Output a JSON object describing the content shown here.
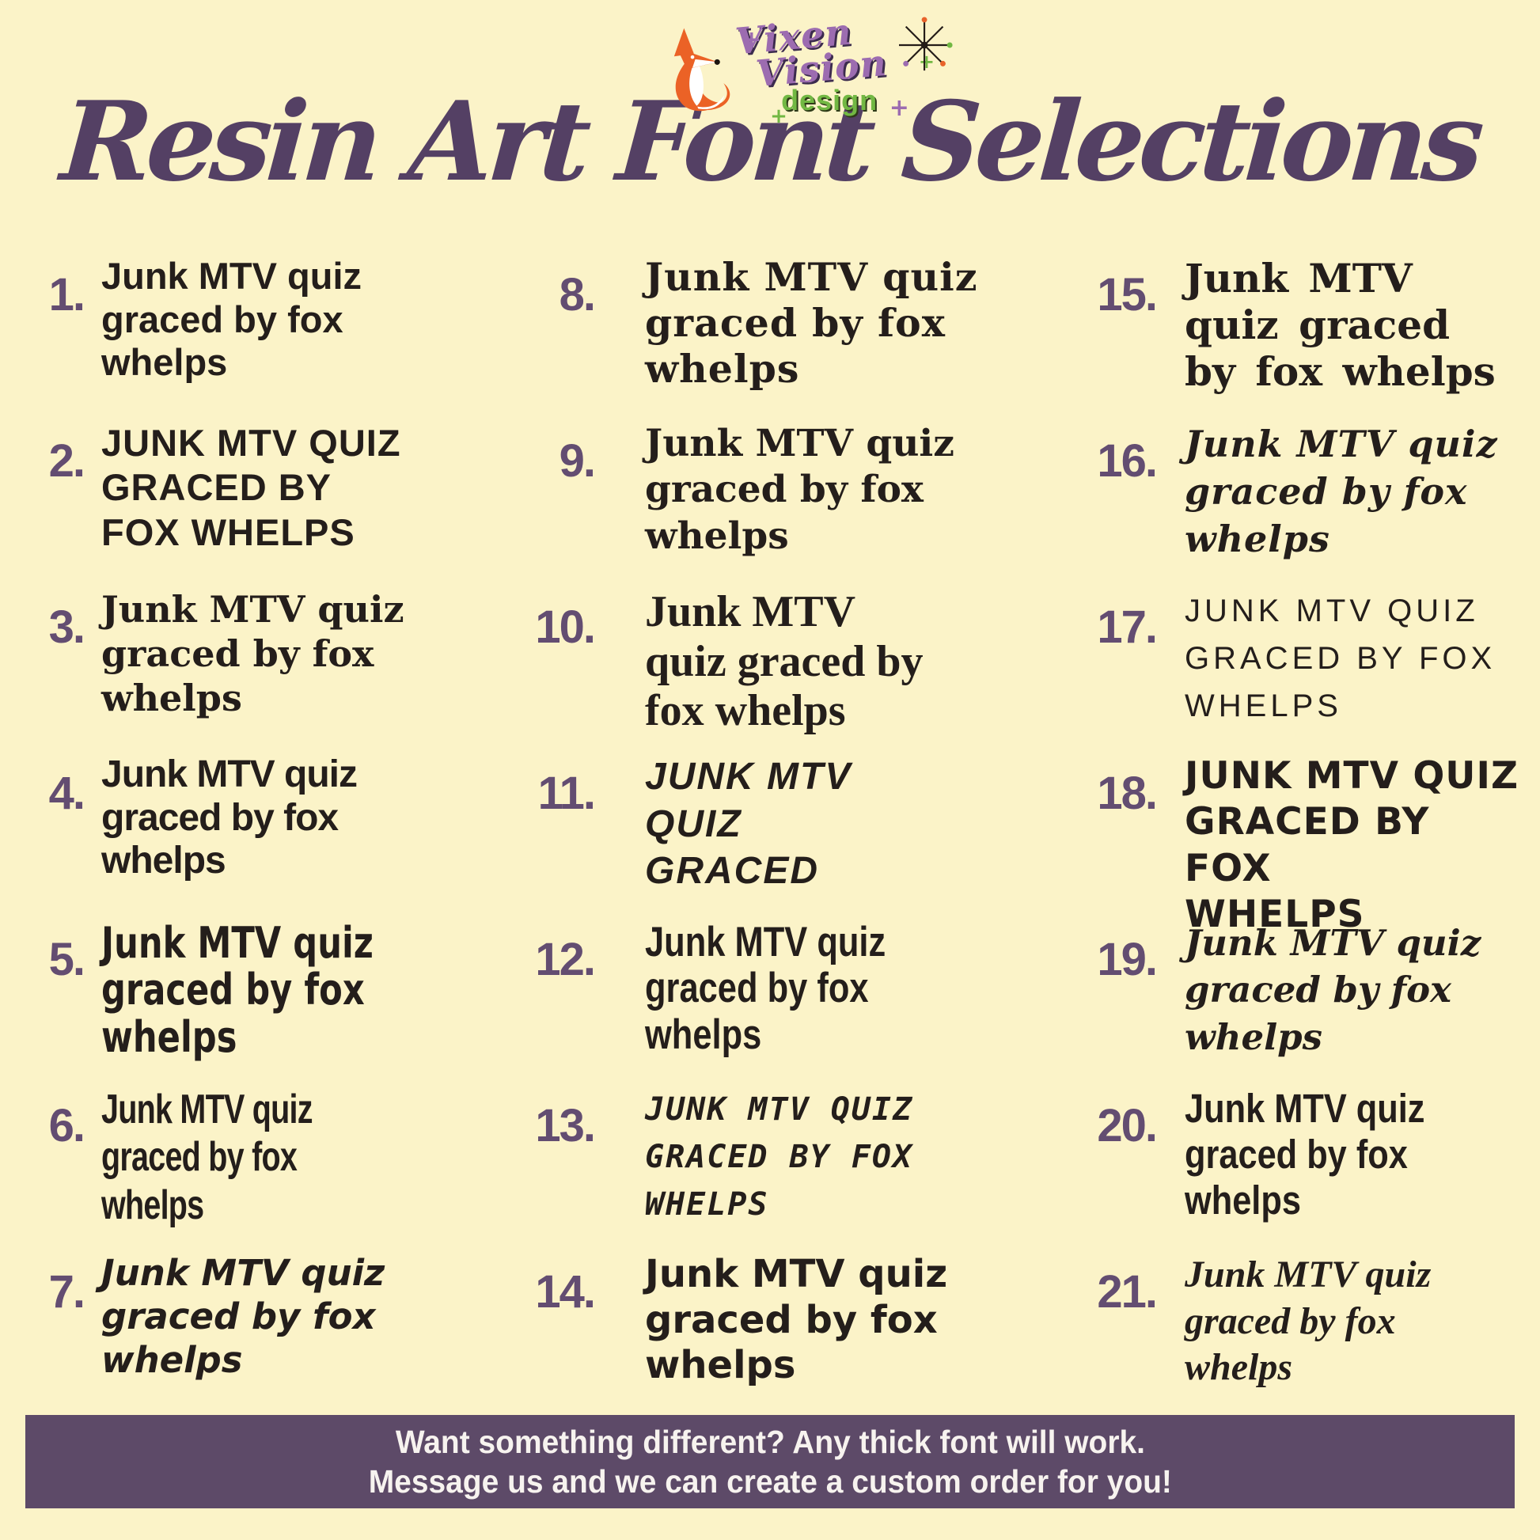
{
  "header": {
    "title": "Resin Art Font Selections"
  },
  "logo": {
    "word1": "Vixen",
    "word2": "Vision",
    "word3": "design"
  },
  "icons": {
    "plus": "+"
  },
  "colors": {
    "bg": "#fbf3c8",
    "ink": "#241e1b",
    "title": "#544064",
    "number": "#634d71",
    "footer_bg": "#5d4a68",
    "footer_text": "#f7f3ef",
    "logo_purple": "#9c6cb0",
    "logo_green": "#72b843",
    "fox_orange": "#eb6226"
  },
  "items": [
    {
      "number": "1.",
      "style": "rounded-sans",
      "lines": [
        "Junk MTV quiz",
        "graced by fox",
        "whelps"
      ]
    },
    {
      "number": "2.",
      "style": "wide-caps",
      "lines": [
        "JUNK MTV QUIZ",
        "GRACED BY",
        "FOX WHELPS"
      ]
    },
    {
      "number": "3.",
      "style": "slab-serif",
      "lines": [
        "Junk MTV quiz",
        "graced by fox",
        "whelps"
      ]
    },
    {
      "number": "4.",
      "style": "bold-round",
      "lines": [
        "Junk MTV quiz",
        "graced by fox",
        "whelps"
      ]
    },
    {
      "number": "5.",
      "style": "quirky-condensed",
      "lines": [
        "Junk MTV quiz",
        "graced by fox",
        "whelps"
      ]
    },
    {
      "number": "6.",
      "style": "techno-condensed",
      "lines": [
        "Junk MTV quiz",
        "graced by fox",
        "whelps"
      ]
    },
    {
      "number": "7.",
      "style": "casual-hand",
      "lines": [
        "Junk MTV quiz",
        "graced by fox",
        "whelps"
      ]
    },
    {
      "number": "8.",
      "style": "heavy-serif",
      "lines": [
        "Junk MTV quiz",
        "graced by fox",
        "whelps"
      ]
    },
    {
      "number": "9.",
      "style": "bold-slab",
      "lines": [
        "Junk MTV quiz",
        "graced by fox",
        "whelps"
      ]
    },
    {
      "number": "10.",
      "style": "classic-serif",
      "lines": [
        "Junk MTV",
        "quiz graced by",
        "fox whelps"
      ]
    },
    {
      "number": "11.",
      "style": "comic-caps",
      "lines": [
        "JUNK MTV",
        "QUIZ",
        "GRACED"
      ]
    },
    {
      "number": "12.",
      "style": "impact-condensed",
      "lines": [
        "Junk MTV quiz",
        "graced by fox",
        "whelps"
      ]
    },
    {
      "number": "13.",
      "style": "graffiti-caps",
      "lines": [
        "JUNK MTV QUIZ",
        "GRACED BY FOX",
        "WHELPS"
      ]
    },
    {
      "number": "14.",
      "style": "round-techno",
      "lines": [
        "Junk MTV quiz",
        "graced by fox",
        "whelps"
      ]
    },
    {
      "number": "15.",
      "style": "curvy-serif",
      "lines": [
        "Junk MTV",
        "quiz graced",
        "by fox whelps"
      ]
    },
    {
      "number": "16.",
      "style": "elegant-script",
      "lines": [
        "Junk MTV quiz",
        "graced by fox",
        "whelps"
      ]
    },
    {
      "number": "17.",
      "style": "thin-hand-caps",
      "lines": [
        "JUNK MTV QUIZ",
        "GRACED BY FOX",
        "WHELPS"
      ]
    },
    {
      "number": "18.",
      "style": "brush-caps",
      "lines": [
        "JUNK MTV QUIZ",
        "GRACED BY FOX",
        "WHELPS"
      ]
    },
    {
      "number": "19.",
      "style": "brush-script",
      "lines": [
        "Junk MTV quiz",
        "graced by fox",
        "whelps"
      ]
    },
    {
      "number": "20.",
      "style": "condensed-bold",
      "lines": [
        "Junk MTV quiz",
        "graced by fox",
        "whelps"
      ]
    },
    {
      "number": "21.",
      "style": "retro-script",
      "lines": [
        "Junk MTV quiz",
        "graced by fox",
        "whelps"
      ]
    }
  ],
  "footer": {
    "line1": "Want something different? Any thick font will work.",
    "line2": "Message us and we can create a custom order for you!"
  }
}
